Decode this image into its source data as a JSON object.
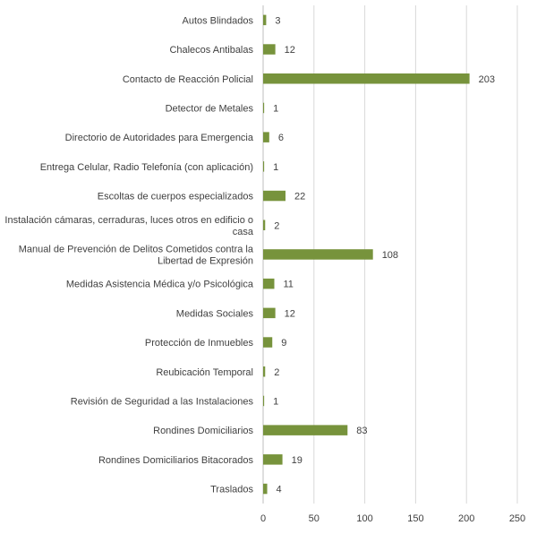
{
  "chart_data": {
    "type": "bar",
    "orientation": "horizontal",
    "title": "",
    "xlabel": "",
    "ylabel": "",
    "xlim": [
      0,
      250
    ],
    "xticks": [
      0,
      50,
      100,
      150,
      200,
      250
    ],
    "grid": "vertical",
    "bar_color": "#77933c",
    "categories": [
      [
        "Autos Blindados"
      ],
      [
        "Chalecos Antibalas"
      ],
      [
        "Contacto de Reacción Policial"
      ],
      [
        "Detector de Metales"
      ],
      [
        "Directorio de Autoridades para Emergencia"
      ],
      [
        "Entrega Celular, Radio Telefonía (con aplicación)"
      ],
      [
        "Escoltas de cuerpos especializados"
      ],
      [
        "Instalación cámaras, cerraduras, luces  otros en edificio o",
        "casa"
      ],
      [
        "Manual de Prevención de Delitos Cometidos contra la",
        "Libertad de Expresión"
      ],
      [
        "Medidas Asistencia Médica y/o Psicológica"
      ],
      [
        "Medidas Sociales"
      ],
      [
        "Protección de Inmuebles"
      ],
      [
        "Reubicación Temporal"
      ],
      [
        "Revisión de Seguridad a las Instalaciones"
      ],
      [
        "Rondines Domiciliarios"
      ],
      [
        "Rondines Domiciliarios Bitacorados"
      ],
      [
        "Traslados"
      ]
    ],
    "values": [
      3,
      12,
      203,
      1,
      6,
      1,
      22,
      2,
      108,
      11,
      12,
      9,
      2,
      1,
      83,
      19,
      4
    ]
  }
}
